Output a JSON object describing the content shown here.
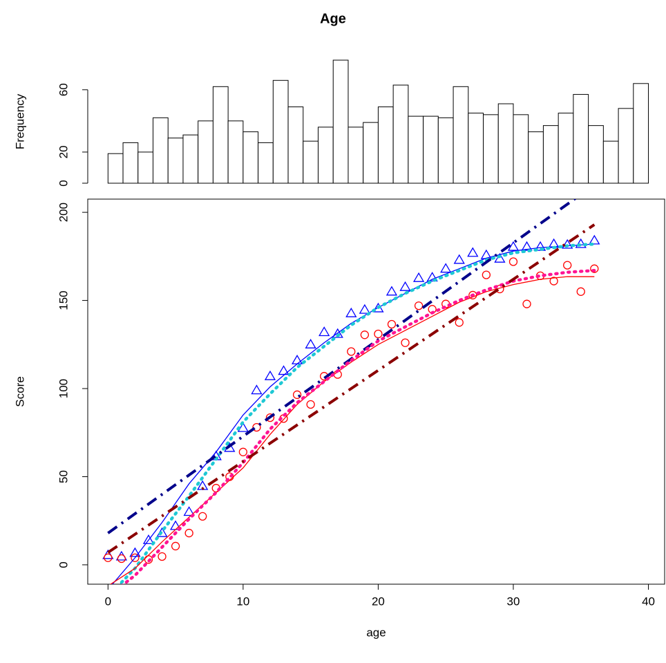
{
  "chart_data": [
    {
      "type": "histogram",
      "title": "Age",
      "ylabel": "Frequency",
      "bins": [
        0,
        1.111,
        2.222,
        3.333,
        4.444,
        5.556,
        6.667,
        7.778,
        8.889,
        10,
        11.111,
        12.222,
        13.333,
        14.444,
        15.556,
        16.667,
        17.778,
        18.889,
        20,
        21.111,
        22.222,
        23.333,
        24.444,
        25.556,
        26.667,
        27.778,
        28.889,
        30,
        31.111,
        32.222,
        33.333,
        34.444,
        35.556,
        36.667,
        37.778,
        38.889,
        40
      ],
      "counts": [
        19,
        26,
        20,
        42,
        29,
        31,
        40,
        62,
        40,
        33,
        26,
        66,
        49,
        27,
        36,
        79,
        36,
        39,
        49,
        63,
        43,
        43,
        42,
        62,
        45,
        44,
        51,
        44,
        33,
        37,
        45,
        57,
        37,
        27,
        48,
        64
      ],
      "color": "#ffffff",
      "xlim": [
        -1.5,
        41.2
      ],
      "ylim": [
        0,
        79
      ],
      "yticks": [
        0,
        20,
        60
      ]
    },
    {
      "type": "scatter",
      "xlabel": "age",
      "ylabel": "Score",
      "xlim": [
        -1.5,
        41.2
      ],
      "ylim": [
        -11,
        207.5
      ],
      "xticks": [
        0,
        10,
        20,
        30,
        40
      ],
      "yticks": [
        0,
        50,
        100,
        150,
        200
      ],
      "series": [
        {
          "marker": "triangle",
          "color": "#0000ff",
          "x": [
            0,
            1,
            2,
            3,
            4,
            5,
            6,
            7,
            8,
            9,
            10,
            11,
            12,
            13,
            14,
            15,
            16,
            17,
            18,
            19,
            20,
            21,
            22,
            23,
            24,
            25,
            26,
            27,
            28,
            29,
            30,
            31,
            32,
            33,
            34,
            35,
            36
          ],
          "values": [
            5.5,
            4.7,
            6.7,
            14,
            18,
            22,
            30,
            44.7,
            61.6,
            66.3,
            77.6,
            99,
            107,
            110,
            116,
            125,
            132,
            131,
            142.7,
            144.7,
            145.5,
            155,
            157.6,
            162.7,
            163,
            168,
            173,
            177,
            175.7,
            173.7,
            180.4,
            180.4,
            180.4,
            182,
            181.6,
            182,
            184
          ]
        },
        {
          "marker": "circle",
          "color": "#ff0000",
          "x": [
            0,
            1,
            2,
            3,
            4,
            5,
            6,
            7,
            8,
            9,
            10,
            11,
            12,
            13,
            14,
            15,
            16,
            17,
            18,
            19,
            20,
            21,
            22,
            23,
            24,
            25,
            26,
            27,
            28,
            29,
            30,
            31,
            32,
            33,
            34,
            35,
            36
          ],
          "values": [
            4,
            3.5,
            4,
            3,
            4.7,
            10.6,
            18,
            27.5,
            43.5,
            50,
            64,
            78,
            83.5,
            83,
            96.5,
            91,
            107,
            108,
            121,
            130.5,
            131,
            136.5,
            126,
            147,
            145,
            148,
            137.5,
            153,
            164.5,
            156.5,
            172,
            148,
            164,
            161,
            170,
            155,
            168
          ]
        },
        {
          "style": "solid",
          "color": "#0000ff",
          "x": [
            0,
            2,
            4,
            6,
            8,
            10,
            12,
            14,
            16,
            18,
            20,
            22,
            24,
            26,
            28,
            30,
            32,
            34,
            36
          ],
          "values": [
            -14,
            4,
            24,
            46,
            64,
            85,
            101,
            114,
            126,
            137,
            146,
            154,
            162,
            168,
            174,
            178,
            180,
            181,
            182
          ]
        },
        {
          "style": "dotted",
          "color": "#1ec8d4",
          "x": [
            1,
            2,
            4,
            6,
            8,
            10,
            12,
            14,
            16,
            18,
            20,
            22,
            24,
            26,
            28,
            30,
            32,
            34,
            36
          ],
          "values": [
            -10,
            -2,
            19,
            39,
            60,
            81,
            97,
            112,
            124,
            136,
            146,
            154,
            161,
            167,
            173,
            177,
            179,
            181,
            182
          ]
        },
        {
          "style": "dashdot",
          "color": "#00008b",
          "x": [
            0,
            36
          ],
          "values": [
            18,
            215.6
          ]
        },
        {
          "style": "solid",
          "color": "#ff0000",
          "x": [
            0,
            2,
            4,
            6,
            8,
            10,
            12,
            14,
            16,
            18,
            20,
            22,
            24,
            26,
            28,
            30,
            32,
            34,
            36
          ],
          "values": [
            -12,
            -2,
            13,
            27,
            41,
            55,
            74,
            91,
            104,
            115,
            125,
            133,
            141,
            149,
            155,
            159,
            162,
            163.5,
            163.5
          ]
        },
        {
          "style": "dotted",
          "color": "#ff1493",
          "x": [
            1,
            2,
            4,
            6,
            8,
            10,
            12,
            14,
            16,
            18,
            20,
            22,
            24,
            26,
            28,
            30,
            32,
            34,
            36
          ],
          "values": [
            -12,
            -6,
            10,
            26,
            41,
            58,
            77,
            92,
            104,
            116,
            127,
            135,
            143,
            150,
            156,
            161,
            164,
            166,
            167
          ]
        },
        {
          "style": "dashdot",
          "color": "#8b0000",
          "x": [
            0,
            36
          ],
          "values": [
            7,
            193
          ]
        }
      ]
    }
  ]
}
